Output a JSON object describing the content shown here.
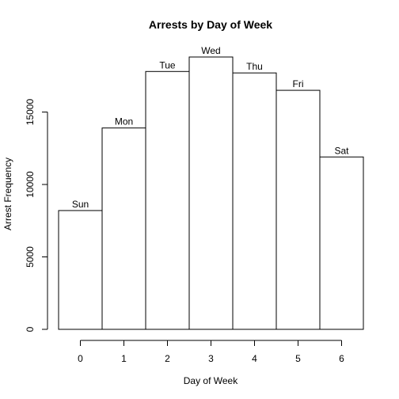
{
  "chart_data": {
    "type": "bar",
    "title": "Arrests by Day of Week",
    "xlabel": "Day of Week",
    "ylabel": "Arrest Frequency",
    "x": [
      0,
      1,
      2,
      3,
      4,
      5,
      6
    ],
    "x_ticks": [
      "0",
      "1",
      "2",
      "3",
      "4",
      "5",
      "6"
    ],
    "labels": [
      "Sun",
      "Mon",
      "Tue",
      "Wed",
      "Thu",
      "Fri",
      "Sat"
    ],
    "values": [
      8200,
      13900,
      17800,
      18800,
      17700,
      16500,
      11900
    ],
    "y_ticks": [
      0,
      5000,
      10000,
      15000
    ],
    "y_tick_labels": [
      "0",
      "5000",
      "10000",
      "15000"
    ],
    "xlim": [
      -0.5,
      6.5
    ],
    "ylim": [
      0,
      18800
    ],
    "grid": false,
    "legend": "none",
    "bar_fill": "#ffffff",
    "bar_stroke": "#000000"
  }
}
